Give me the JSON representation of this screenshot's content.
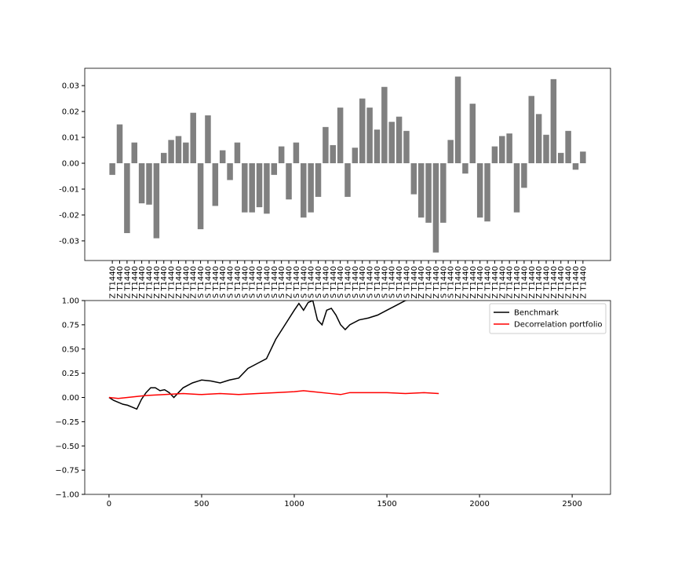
{
  "chart_data": [
    {
      "type": "bar",
      "color": "#808080",
      "categories": [
        "Z T1440",
        "Z T1440",
        "Z T1440",
        "Z T1440",
        "Z T1440",
        "Z T1440",
        "Z T1440",
        "Z T1440",
        "Z T1440",
        "Z T1440",
        "Z T1440",
        "Z T1440",
        "S T1440",
        "S T1440",
        "S T1440",
        "S T1440",
        "S T1440",
        "S T1440",
        "S T1440",
        "S T1440",
        "S T1440",
        "S T1440",
        "S T1440",
        "S T1440",
        "Z T1440",
        "S T1440",
        "S T1440",
        "S T1440",
        "S T1440",
        "S T1440",
        "S T1440",
        "S T1440",
        "S T1440",
        "S T1440",
        "S T1440",
        "S T1440",
        "S T1440",
        "S T1440",
        "S T1440",
        "S T1440",
        "S T1440",
        "Z T1440",
        "Z T1440",
        "Z T1440",
        "Z T1440",
        "S T1440",
        "S T1440",
        "Z T1440",
        "Z T1440",
        "Z T1440",
        "Z T1440",
        "Z T1440",
        "Z T1440",
        "Z T1440",
        "Z T1440",
        "Z T1440",
        "Z T1440",
        "Z T1440",
        "Z T1440",
        "Z T1440",
        "Z T1440",
        "Z T1440",
        "Z T1440",
        "Z T1440",
        "Z T1440"
      ],
      "values": [
        -0.0045,
        0.015,
        -0.027,
        0.008,
        -0.0155,
        -0.016,
        -0.029,
        0.004,
        0.009,
        0.0105,
        0.008,
        0.0195,
        -0.0255,
        0.0185,
        -0.0165,
        0.005,
        -0.0065,
        0.008,
        -0.019,
        -0.019,
        -0.017,
        -0.0195,
        -0.0045,
        0.0065,
        -0.014,
        0.008,
        -0.021,
        -0.019,
        -0.013,
        0.014,
        0.007,
        0.0215,
        -0.013,
        0.006,
        0.025,
        0.0215,
        0.013,
        0.0295,
        0.016,
        0.018,
        0.0125,
        -0.012,
        -0.021,
        -0.023,
        -0.0345,
        -0.023,
        0.009,
        0.0335,
        -0.004,
        0.023,
        -0.021,
        -0.0225,
        0.0065,
        0.0105,
        0.0115,
        -0.019,
        -0.0095,
        0.026,
        0.019,
        0.011,
        0.0325,
        0.004,
        0.0125,
        -0.0025,
        0.0045
      ],
      "ylim": [
        -0.0376,
        0.0367
      ],
      "yticks": [
        -0.03,
        -0.02,
        -0.01,
        {
          "value": 0,
          "label": "0.00"
        },
        0.01,
        0.02,
        0.03
      ]
    },
    {
      "type": "line",
      "legend": "upper right",
      "series": [
        {
          "name": "Benchmark",
          "color": "#000000",
          "x": [
            0,
            25,
            50,
            75,
            100,
            125,
            150,
            175,
            200,
            225,
            250,
            275,
            300,
            325,
            350,
            375,
            400,
            450,
            500,
            550,
            600,
            650,
            700,
            750,
            800,
            850,
            900,
            950,
            1000,
            1025,
            1050,
            1075,
            1100,
            1125,
            1150,
            1175,
            1200,
            1225,
            1250,
            1275,
            1300,
            1350,
            1400,
            1450,
            1500,
            1550,
            1600,
            1650
          ],
          "values": [
            0,
            -0.03,
            -0.05,
            -0.07,
            -0.08,
            -0.1,
            -0.12,
            -0.02,
            0.05,
            0.1,
            0.1,
            0.07,
            0.08,
            0.05,
            0.0,
            0.05,
            0.1,
            0.15,
            0.18,
            0.17,
            0.15,
            0.18,
            0.2,
            0.3,
            0.35,
            0.4,
            0.6,
            0.75,
            0.9,
            0.97,
            0.9,
            0.98,
            1.0,
            0.8,
            0.75,
            0.9,
            0.92,
            0.85,
            0.75,
            0.7,
            0.75,
            0.8,
            0.82,
            0.85,
            0.9,
            0.95,
            1.0,
            1.02
          ]
        },
        {
          "name": "Decorrelation portfolio",
          "color": "#ff0000",
          "x": [
            0,
            50,
            100,
            150,
            200,
            300,
            400,
            500,
            600,
            700,
            800,
            900,
            1000,
            1050,
            1100,
            1200,
            1250,
            1300,
            1400,
            1500,
            1600,
            1700,
            1780
          ],
          "values": [
            0,
            -0.01,
            0.0,
            0.01,
            0.02,
            0.03,
            0.04,
            0.03,
            0.04,
            0.03,
            0.04,
            0.05,
            0.06,
            0.07,
            0.06,
            0.04,
            0.03,
            0.05,
            0.05,
            0.05,
            0.04,
            0.05,
            0.04
          ]
        }
      ],
      "xlim": [
        -131,
        2707
      ],
      "xticks": [
        0,
        500,
        1000,
        1500,
        2000,
        2500
      ],
      "ylim": [
        -1,
        1
      ],
      "yticks": [
        {
          "value": -1,
          "label": "−1.00"
        },
        {
          "value": -0.75,
          "label": "−0.75"
        },
        {
          "value": -0.5,
          "label": "−0.50"
        },
        {
          "value": -0.25,
          "label": "−0.25"
        },
        {
          "value": 0,
          "label": "0.00"
        },
        {
          "value": 0.25,
          "label": "0.25"
        },
        {
          "value": 0.5,
          "label": "0.50"
        },
        {
          "value": 0.75,
          "label": "0.75"
        },
        {
          "value": 1,
          "label": "1.00"
        }
      ]
    }
  ]
}
